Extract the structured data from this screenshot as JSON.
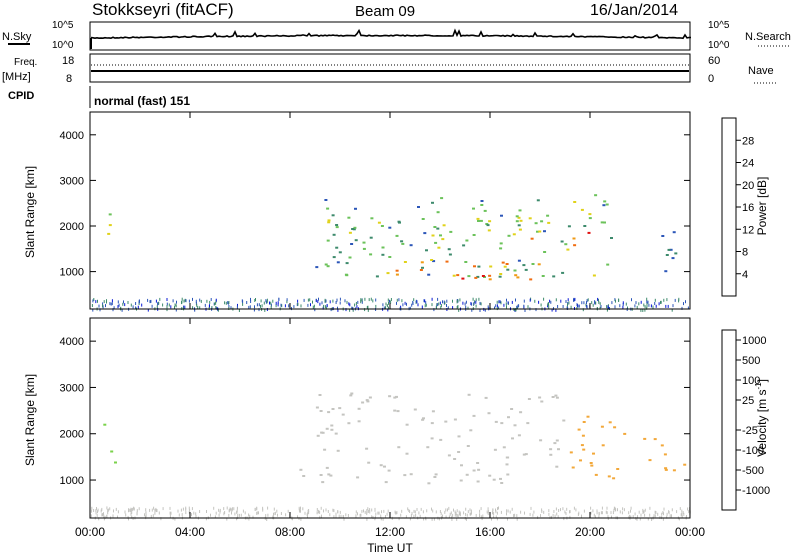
{
  "header": {
    "station": "Stokkseyri (fitACF)",
    "beam": "Beam 09",
    "date": "16/Jan/2014"
  },
  "nsky": {
    "label": "N.Sky",
    "right_label": "N.Search",
    "left_ticks": [
      "10^5",
      "10^0"
    ],
    "right_ticks": [
      "10^5",
      "10^0"
    ]
  },
  "freq": {
    "label_top": "Freq.",
    "label_unit": "[MHz]",
    "left_ticks": [
      "18",
      "8"
    ],
    "right_ticks": [
      "60",
      "0"
    ],
    "right_label": "Nave"
  },
  "cpid": {
    "label": "CPID",
    "mode": "normal (fast) 151"
  },
  "power": {
    "ylabel": "Slant Range [km]",
    "yticks": [
      "1000",
      "2000",
      "3000",
      "4000"
    ],
    "colorbar_label": "Power [dB]",
    "colorbar_ticks": [
      "4",
      "8",
      "12",
      "16",
      "20",
      "24",
      "28"
    ],
    "colors": [
      "#0a1ad6",
      "#2c56b8",
      "#3d8a6c",
      "#6bc25a",
      "#e0d21a",
      "#ef9a14",
      "#f06c10",
      "#e01010"
    ]
  },
  "velocity": {
    "ylabel": "Slant Range [km]",
    "yticks": [
      "1000",
      "2000",
      "3000",
      "4000"
    ],
    "colorbar_label": "Velocity",
    "colorbar_unit_base": "[m s",
    "colorbar_unit_sup": "-1",
    "colorbar_unit_end": "]",
    "colorbar_ticks": [
      "1000",
      "500",
      "100",
      "25",
      "-25",
      "-100",
      "-500",
      "-1000"
    ],
    "colors": [
      "#1c28b4",
      "#2f6aa0",
      "#3d8c4c",
      "#7ad24a",
      "#c4c4c0",
      "#f2a83a",
      "#ee7a14",
      "#e82010",
      "#ee1212"
    ],
    "scatter_color": "#c4c4c0"
  },
  "xaxis": {
    "label": "Time UT",
    "ticks": [
      "00:00",
      "04:00",
      "08:00",
      "12:00",
      "16:00",
      "20:00",
      "00:00"
    ]
  },
  "chart_data": {
    "type": "heatmap",
    "title": "Stokkseyri (fitACF)",
    "xlabel": "Time UT",
    "ylabel": "Slant Range [km]",
    "xlim": [
      0,
      24
    ],
    "ylim": [
      180,
      4500
    ],
    "panels": [
      {
        "name": "Power [dB]",
        "color_range": [
          0,
          32
        ],
        "regions": [
          {
            "t_start": 9.0,
            "t_end": 21.0,
            "range_low": 900,
            "range_high": 2700,
            "value": 12
          },
          {
            "t_start": 11.5,
            "t_end": 19.0,
            "range_low": 850,
            "range_high": 1300,
            "value": 22
          },
          {
            "t_start": 12.5,
            "t_end": 16.0,
            "range_low": 800,
            "range_high": 1000,
            "value": 28
          },
          {
            "t_start": 17.5,
            "t_end": 20.0,
            "range_low": 1600,
            "range_high": 1900,
            "value": 26
          },
          {
            "t_start": 10.0,
            "t_end": 18.0,
            "range_low": 1800,
            "range_high": 2200,
            "value": 16
          },
          {
            "t_start": 0.5,
            "t_end": 1.0,
            "range_low": 1300,
            "range_high": 2300,
            "value": 14
          },
          {
            "t_start": 22.5,
            "t_end": 24.0,
            "range_low": 1000,
            "range_high": 2000,
            "value": 8
          }
        ]
      },
      {
        "name": "Velocity [m s-1]",
        "color_range": [
          -1000,
          1000
        ],
        "regions": [
          {
            "t_start": 9.0,
            "t_end": 19.0,
            "range_low": 900,
            "range_high": 2900,
            "value": 0
          },
          {
            "t_start": 19.0,
            "t_end": 21.5,
            "range_low": 900,
            "range_high": 2400,
            "value": -300
          },
          {
            "t_start": 8.0,
            "t_end": 10.0,
            "range_low": 1100,
            "range_high": 1400,
            "value": 75
          },
          {
            "t_start": 22.0,
            "t_end": 24.0,
            "range_low": 1200,
            "range_high": 2000,
            "value": -300
          },
          {
            "t_start": 0.5,
            "t_end": 1.0,
            "range_low": 1300,
            "range_high": 2300,
            "value": 300
          }
        ]
      }
    ],
    "frequency_mhz": 10,
    "nave": 28
  }
}
